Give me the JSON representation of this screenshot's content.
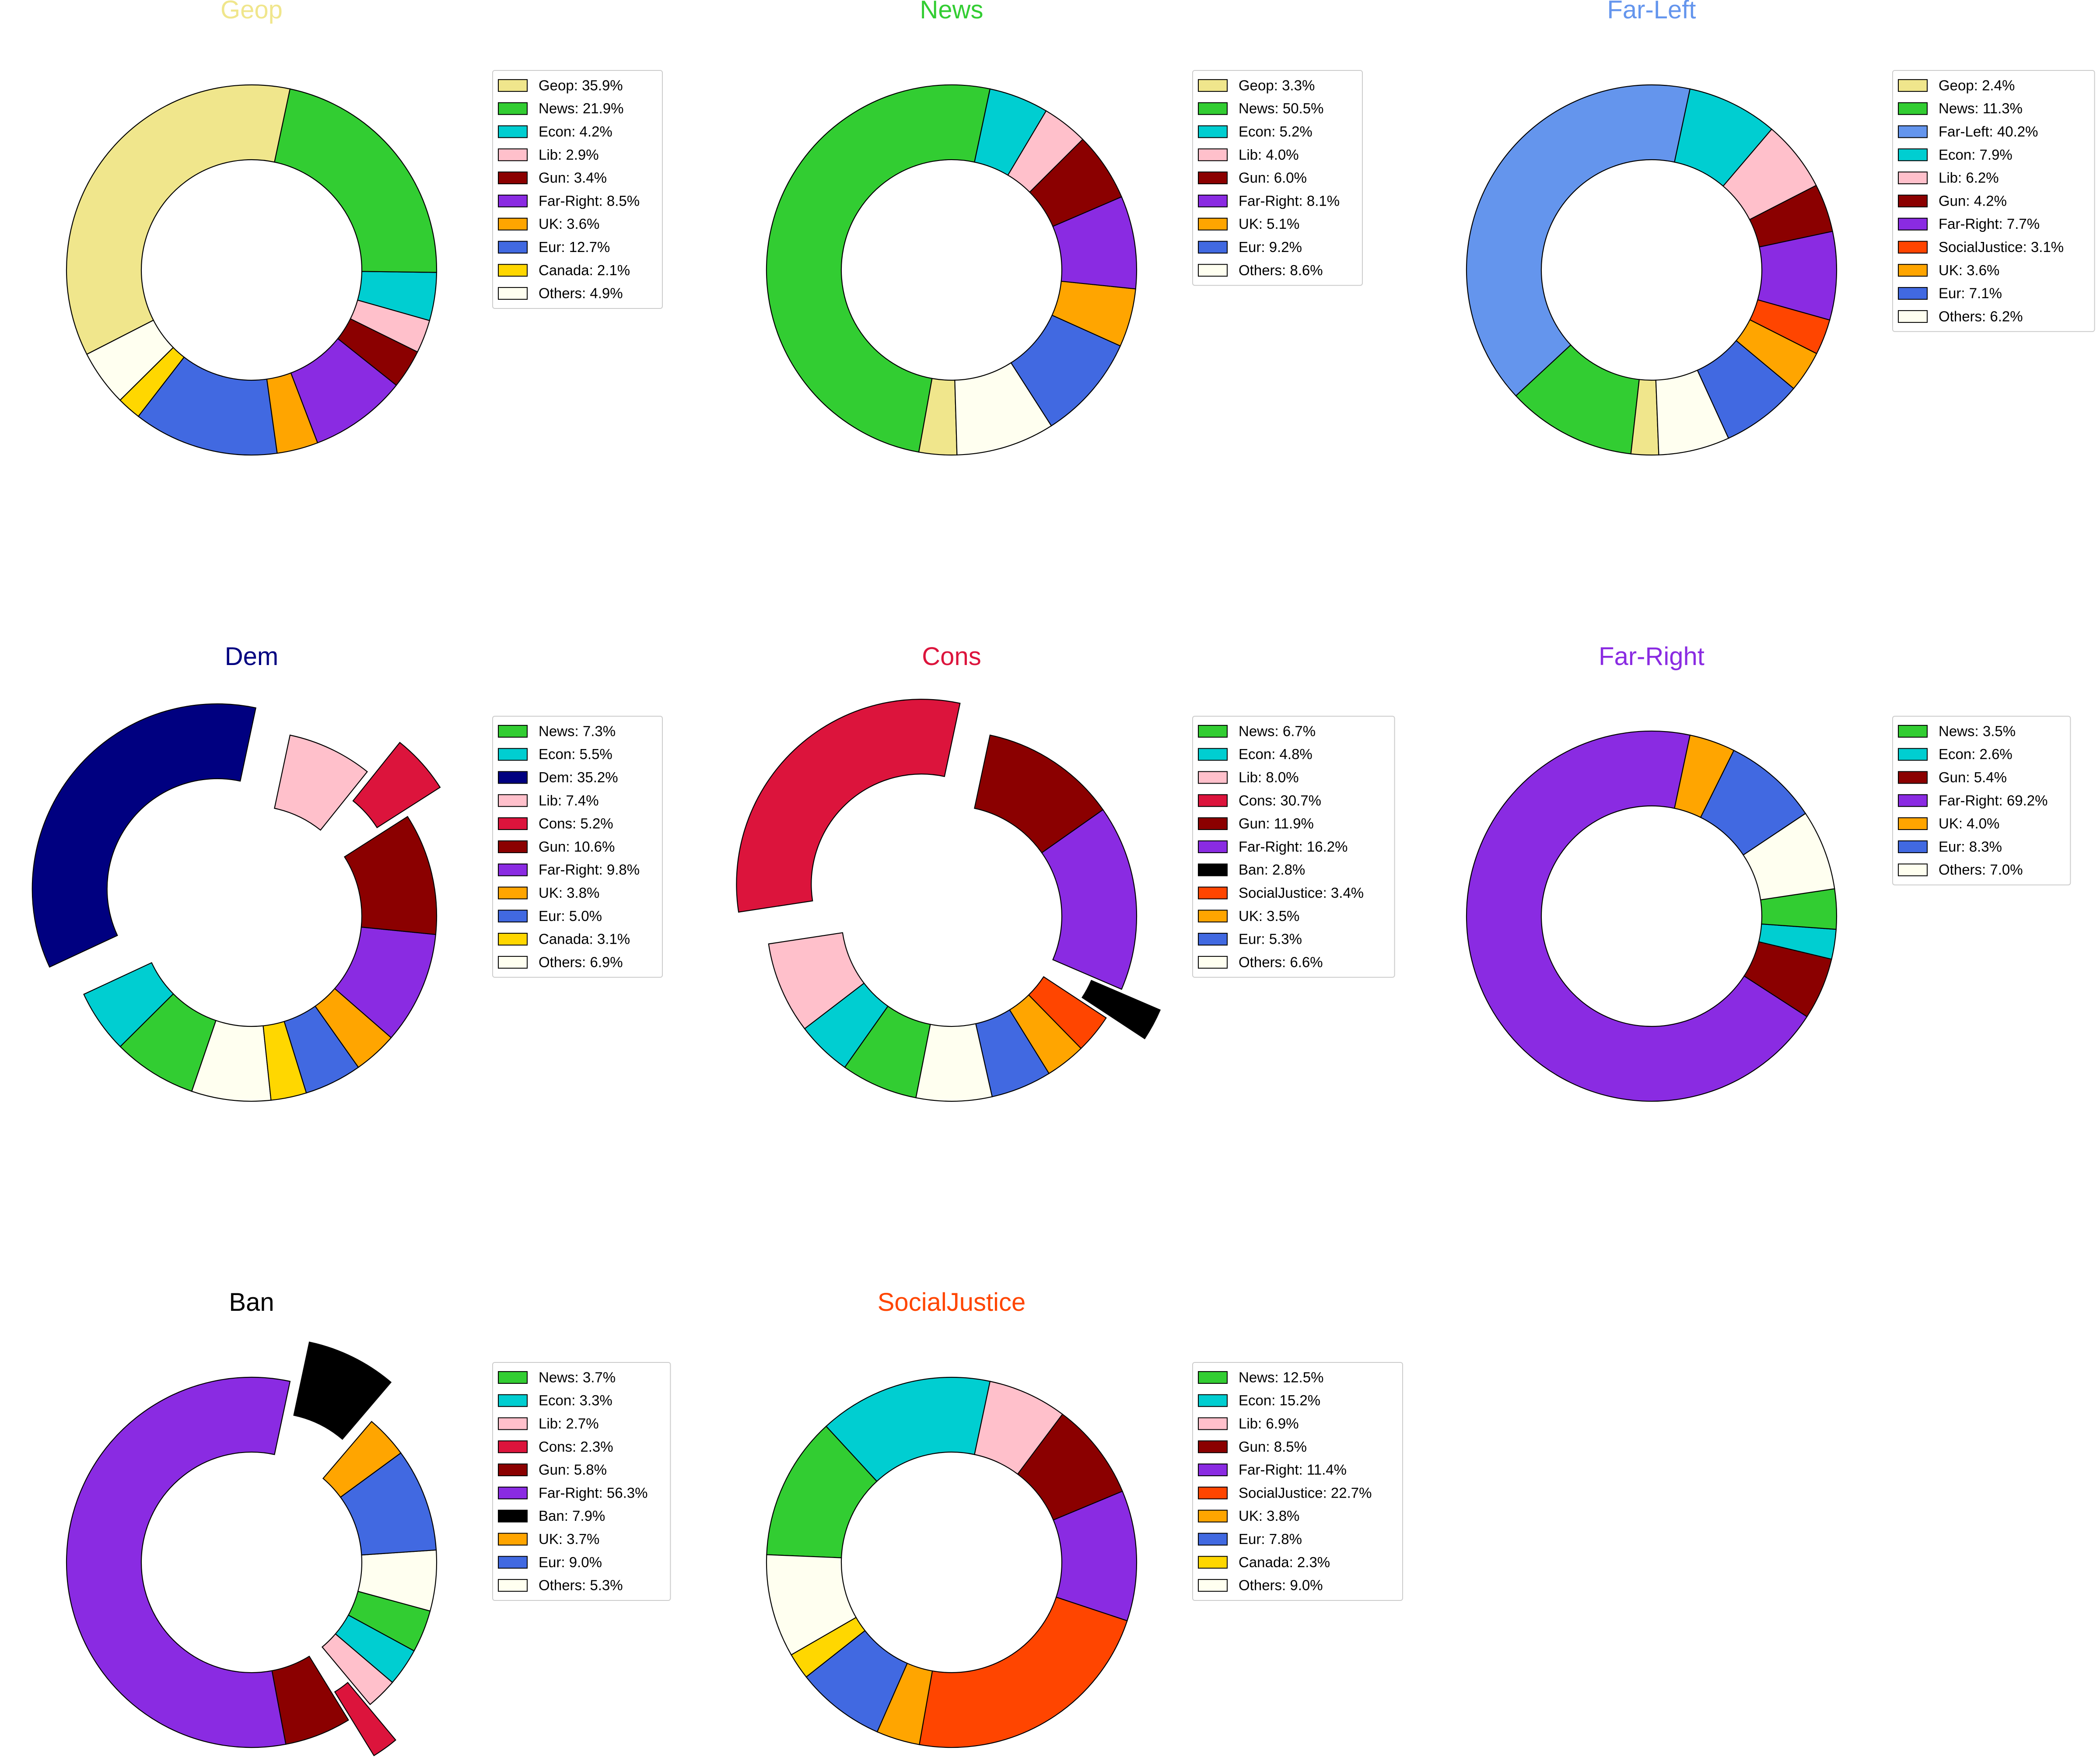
{
  "chart_data": [
    {
      "type": "donut",
      "title": "Geop",
      "title_color": "#F0E68C",
      "slices": [
        {
          "label": "Geop",
          "value": 35.9,
          "color": "#F0E68C",
          "exploded": false
        },
        {
          "label": "Others",
          "value": 4.9,
          "color": "#FFFFF0",
          "exploded": false
        },
        {
          "label": "Canada",
          "value": 2.1,
          "color": "#FFD700",
          "exploded": false
        },
        {
          "label": "Eur",
          "value": 12.7,
          "color": "#4169E1",
          "exploded": false
        },
        {
          "label": "UK",
          "value": 3.6,
          "color": "#FFA500",
          "exploded": false
        },
        {
          "label": "Far-Right",
          "value": 8.5,
          "color": "#8A2BE2",
          "exploded": false
        },
        {
          "label": "Gun",
          "value": 3.4,
          "color": "#8B0000",
          "exploded": false
        },
        {
          "label": "Lib",
          "value": 2.9,
          "color": "#FFC0CB",
          "exploded": false
        },
        {
          "label": "Econ",
          "value": 4.2,
          "color": "#00CED1",
          "exploded": false
        },
        {
          "label": "News",
          "value": 21.9,
          "color": "#32CD32",
          "exploded": false
        }
      ],
      "legend": [
        {
          "text": "Geop: 35.9%",
          "color": "#F0E68C"
        },
        {
          "text": "News: 21.9%",
          "color": "#32CD32"
        },
        {
          "text": "Econ: 4.2%",
          "color": "#00CED1"
        },
        {
          "text": "Lib: 2.9%",
          "color": "#FFC0CB"
        },
        {
          "text": "Gun: 3.4%",
          "color": "#8B0000"
        },
        {
          "text": "Far-Right: 8.5%",
          "color": "#8A2BE2"
        },
        {
          "text": "UK: 3.6%",
          "color": "#FFA500"
        },
        {
          "text": "Eur: 12.7%",
          "color": "#4169E1"
        },
        {
          "text": "Canada: 2.1%",
          "color": "#FFD700"
        },
        {
          "text": "Others: 4.9%",
          "color": "#FFFFF0"
        }
      ]
    },
    {
      "type": "donut",
      "title": "News",
      "title_color": "#32CD32",
      "slices": [
        {
          "label": "News",
          "value": 50.5,
          "color": "#32CD32",
          "exploded": false
        },
        {
          "label": "Geop",
          "value": 3.3,
          "color": "#F0E68C",
          "exploded": false
        },
        {
          "label": "Others",
          "value": 8.6,
          "color": "#FFFFF0",
          "exploded": false
        },
        {
          "label": "Eur",
          "value": 9.2,
          "color": "#4169E1",
          "exploded": false
        },
        {
          "label": "UK",
          "value": 5.1,
          "color": "#FFA500",
          "exploded": false
        },
        {
          "label": "Far-Right",
          "value": 8.1,
          "color": "#8A2BE2",
          "exploded": false
        },
        {
          "label": "Gun",
          "value": 6.0,
          "color": "#8B0000",
          "exploded": false
        },
        {
          "label": "Lib",
          "value": 4.0,
          "color": "#FFC0CB",
          "exploded": false
        },
        {
          "label": "Econ",
          "value": 5.2,
          "color": "#00CED1",
          "exploded": false
        }
      ],
      "legend": [
        {
          "text": "Geop: 3.3%",
          "color": "#F0E68C"
        },
        {
          "text": "News: 50.5%",
          "color": "#32CD32"
        },
        {
          "text": "Econ: 5.2%",
          "color": "#00CED1"
        },
        {
          "text": "Lib: 4.0%",
          "color": "#FFC0CB"
        },
        {
          "text": "Gun: 6.0%",
          "color": "#8B0000"
        },
        {
          "text": "Far-Right: 8.1%",
          "color": "#8A2BE2"
        },
        {
          "text": "UK: 5.1%",
          "color": "#FFA500"
        },
        {
          "text": "Eur: 9.2%",
          "color": "#4169E1"
        },
        {
          "text": "Others: 8.6%",
          "color": "#FFFFF0"
        }
      ]
    },
    {
      "type": "donut",
      "title": "Far-Left",
      "title_color": "#6495ED",
      "slices": [
        {
          "label": "Far-Left",
          "value": 40.2,
          "color": "#6495ED",
          "exploded": false
        },
        {
          "label": "News",
          "value": 11.3,
          "color": "#32CD32",
          "exploded": false
        },
        {
          "label": "Geop",
          "value": 2.4,
          "color": "#F0E68C",
          "exploded": false
        },
        {
          "label": "Others",
          "value": 6.2,
          "color": "#FFFFF0",
          "exploded": false
        },
        {
          "label": "Eur",
          "value": 7.1,
          "color": "#4169E1",
          "exploded": false
        },
        {
          "label": "UK",
          "value": 3.6,
          "color": "#FFA500",
          "exploded": false
        },
        {
          "label": "SocialJustice",
          "value": 3.1,
          "color": "#FF4500",
          "exploded": false
        },
        {
          "label": "Far-Right",
          "value": 7.7,
          "color": "#8A2BE2",
          "exploded": false
        },
        {
          "label": "Gun",
          "value": 4.2,
          "color": "#8B0000",
          "exploded": false
        },
        {
          "label": "Lib",
          "value": 6.2,
          "color": "#FFC0CB",
          "exploded": false
        },
        {
          "label": "Econ",
          "value": 7.9,
          "color": "#00CED1",
          "exploded": false
        }
      ],
      "legend": [
        {
          "text": "Geop: 2.4%",
          "color": "#F0E68C"
        },
        {
          "text": "News: 11.3%",
          "color": "#32CD32"
        },
        {
          "text": "Far-Left: 40.2%",
          "color": "#6495ED"
        },
        {
          "text": "Econ: 7.9%",
          "color": "#00CED1"
        },
        {
          "text": "Lib: 6.2%",
          "color": "#FFC0CB"
        },
        {
          "text": "Gun: 4.2%",
          "color": "#8B0000"
        },
        {
          "text": "Far-Right: 7.7%",
          "color": "#8A2BE2"
        },
        {
          "text": "SocialJustice: 3.1%",
          "color": "#FF4500"
        },
        {
          "text": "UK: 3.6%",
          "color": "#FFA500"
        },
        {
          "text": "Eur: 7.1%",
          "color": "#4169E1"
        },
        {
          "text": "Others: 6.2%",
          "color": "#FFFFF0"
        }
      ]
    },
    {
      "type": "donut",
      "title": "Dem",
      "title_color": "#000080",
      "slices": [
        {
          "label": "Dem",
          "value": 35.2,
          "color": "#000080",
          "exploded": true
        },
        {
          "label": "Econ",
          "value": 5.5,
          "color": "#00CED1",
          "exploded": false
        },
        {
          "label": "News",
          "value": 7.3,
          "color": "#32CD32",
          "exploded": false
        },
        {
          "label": "Others",
          "value": 6.9,
          "color": "#FFFFF0",
          "exploded": false
        },
        {
          "label": "Canada",
          "value": 3.1,
          "color": "#FFD700",
          "exploded": false
        },
        {
          "label": "Eur",
          "value": 5.0,
          "color": "#4169E1",
          "exploded": false
        },
        {
          "label": "UK",
          "value": 3.8,
          "color": "#FFA500",
          "exploded": false
        },
        {
          "label": "Far-Right",
          "value": 9.8,
          "color": "#8A2BE2",
          "exploded": false
        },
        {
          "label": "Gun",
          "value": 10.6,
          "color": "#8B0000",
          "exploded": false
        },
        {
          "label": "Cons",
          "value": 5.2,
          "color": "#DC143C",
          "exploded": true
        },
        {
          "label": "Lib",
          "value": 7.4,
          "color": "#FFC0CB",
          "exploded": false
        }
      ],
      "legend": [
        {
          "text": "News: 7.3%",
          "color": "#32CD32"
        },
        {
          "text": "Econ: 5.5%",
          "color": "#00CED1"
        },
        {
          "text": "Dem: 35.2%",
          "color": "#000080"
        },
        {
          "text": "Lib: 7.4%",
          "color": "#FFC0CB"
        },
        {
          "text": "Cons: 5.2%",
          "color": "#DC143C"
        },
        {
          "text": "Gun: 10.6%",
          "color": "#8B0000"
        },
        {
          "text": "Far-Right: 9.8%",
          "color": "#8A2BE2"
        },
        {
          "text": "UK: 3.8%",
          "color": "#FFA500"
        },
        {
          "text": "Eur: 5.0%",
          "color": "#4169E1"
        },
        {
          "text": "Canada: 3.1%",
          "color": "#FFD700"
        },
        {
          "text": "Others: 6.9%",
          "color": "#FFFFF0"
        }
      ]
    },
    {
      "type": "donut",
      "title": "Cons",
      "title_color": "#DC143C",
      "slices": [
        {
          "label": "Cons",
          "value": 30.7,
          "color": "#DC143C",
          "exploded": true
        },
        {
          "label": "Lib",
          "value": 8.0,
          "color": "#FFC0CB",
          "exploded": false
        },
        {
          "label": "Econ",
          "value": 4.8,
          "color": "#00CED1",
          "exploded": false
        },
        {
          "label": "News",
          "value": 6.7,
          "color": "#32CD32",
          "exploded": false
        },
        {
          "label": "Others",
          "value": 6.6,
          "color": "#FFFFF0",
          "exploded": false
        },
        {
          "label": "Eur",
          "value": 5.3,
          "color": "#4169E1",
          "exploded": false
        },
        {
          "label": "UK",
          "value": 3.5,
          "color": "#FFA500",
          "exploded": false
        },
        {
          "label": "SocialJustice",
          "value": 3.4,
          "color": "#FF4500",
          "exploded": false
        },
        {
          "label": "Ban",
          "value": 2.8,
          "color": "#000000",
          "exploded": true
        },
        {
          "label": "Far-Right",
          "value": 16.2,
          "color": "#8A2BE2",
          "exploded": false
        },
        {
          "label": "Gun",
          "value": 11.9,
          "color": "#8B0000",
          "exploded": false
        }
      ],
      "legend": [
        {
          "text": "News: 6.7%",
          "color": "#32CD32"
        },
        {
          "text": "Econ: 4.8%",
          "color": "#00CED1"
        },
        {
          "text": "Lib: 8.0%",
          "color": "#FFC0CB"
        },
        {
          "text": "Cons: 30.7%",
          "color": "#DC143C"
        },
        {
          "text": "Gun: 11.9%",
          "color": "#8B0000"
        },
        {
          "text": "Far-Right: 16.2%",
          "color": "#8A2BE2"
        },
        {
          "text": "Ban: 2.8%",
          "color": "#000000"
        },
        {
          "text": "SocialJustice: 3.4%",
          "color": "#FF4500"
        },
        {
          "text": "UK: 3.5%",
          "color": "#FFA500"
        },
        {
          "text": "Eur: 5.3%",
          "color": "#4169E1"
        },
        {
          "text": "Others: 6.6%",
          "color": "#FFFFF0"
        }
      ]
    },
    {
      "type": "donut",
      "title": "Far-Right",
      "title_color": "#8A2BE2",
      "slices": [
        {
          "label": "Far-Right",
          "value": 69.2,
          "color": "#8A2BE2",
          "exploded": false
        },
        {
          "label": "Gun",
          "value": 5.4,
          "color": "#8B0000",
          "exploded": false
        },
        {
          "label": "Econ",
          "value": 2.6,
          "color": "#00CED1",
          "exploded": false
        },
        {
          "label": "News",
          "value": 3.5,
          "color": "#32CD32",
          "exploded": false
        },
        {
          "label": "Others",
          "value": 7.0,
          "color": "#FFFFF0",
          "exploded": false
        },
        {
          "label": "Eur",
          "value": 8.3,
          "color": "#4169E1",
          "exploded": false
        },
        {
          "label": "UK",
          "value": 4.0,
          "color": "#FFA500",
          "exploded": false
        }
      ],
      "legend": [
        {
          "text": "News: 3.5%",
          "color": "#32CD32"
        },
        {
          "text": "Econ: 2.6%",
          "color": "#00CED1"
        },
        {
          "text": "Gun: 5.4%",
          "color": "#8B0000"
        },
        {
          "text": "Far-Right: 69.2%",
          "color": "#8A2BE2"
        },
        {
          "text": "UK: 4.0%",
          "color": "#FFA500"
        },
        {
          "text": "Eur: 8.3%",
          "color": "#4169E1"
        },
        {
          "text": "Others: 7.0%",
          "color": "#FFFFF0"
        }
      ]
    },
    {
      "type": "donut",
      "title": "Ban",
      "title_color": "#000000",
      "slices": [
        {
          "label": "Far-Right",
          "value": 56.3,
          "color": "#8A2BE2",
          "exploded": false
        },
        {
          "label": "Gun",
          "value": 5.8,
          "color": "#8B0000",
          "exploded": false
        },
        {
          "label": "Cons",
          "value": 2.3,
          "color": "#DC143C",
          "exploded": true
        },
        {
          "label": "Lib",
          "value": 2.7,
          "color": "#FFC0CB",
          "exploded": false
        },
        {
          "label": "Econ",
          "value": 3.3,
          "color": "#00CED1",
          "exploded": false
        },
        {
          "label": "News",
          "value": 3.7,
          "color": "#32CD32",
          "exploded": false
        },
        {
          "label": "Others",
          "value": 5.3,
          "color": "#FFFFF0",
          "exploded": false
        },
        {
          "label": "Eur",
          "value": 9.0,
          "color": "#4169E1",
          "exploded": false
        },
        {
          "label": "UK",
          "value": 3.7,
          "color": "#FFA500",
          "exploded": false
        },
        {
          "label": "Ban",
          "value": 7.9,
          "color": "#000000",
          "exploded": true
        }
      ],
      "legend": [
        {
          "text": "News: 3.7%",
          "color": "#32CD32"
        },
        {
          "text": "Econ: 3.3%",
          "color": "#00CED1"
        },
        {
          "text": "Lib: 2.7%",
          "color": "#FFC0CB"
        },
        {
          "text": "Cons: 2.3%",
          "color": "#DC143C"
        },
        {
          "text": "Gun: 5.8%",
          "color": "#8B0000"
        },
        {
          "text": "Far-Right: 56.3%",
          "color": "#8A2BE2"
        },
        {
          "text": "Ban: 7.9%",
          "color": "#000000"
        },
        {
          "text": "UK: 3.7%",
          "color": "#FFA500"
        },
        {
          "text": "Eur: 9.0%",
          "color": "#4169E1"
        },
        {
          "text": "Others: 5.3%",
          "color": "#FFFFF0"
        }
      ]
    },
    {
      "type": "donut",
      "title": "SocialJustice",
      "title_color": "#FF4500",
      "slices": [
        {
          "label": "Econ",
          "value": 15.2,
          "color": "#00CED1",
          "exploded": false
        },
        {
          "label": "News",
          "value": 12.5,
          "color": "#32CD32",
          "exploded": false
        },
        {
          "label": "Others",
          "value": 9.0,
          "color": "#FFFFF0",
          "exploded": false
        },
        {
          "label": "Canada",
          "value": 2.3,
          "color": "#FFD700",
          "exploded": false
        },
        {
          "label": "Eur",
          "value": 7.8,
          "color": "#4169E1",
          "exploded": false
        },
        {
          "label": "UK",
          "value": 3.8,
          "color": "#FFA500",
          "exploded": false
        },
        {
          "label": "SocialJustice",
          "value": 22.7,
          "color": "#FF4500",
          "exploded": false
        },
        {
          "label": "Far-Right",
          "value": 11.4,
          "color": "#8A2BE2",
          "exploded": false
        },
        {
          "label": "Gun",
          "value": 8.5,
          "color": "#8B0000",
          "exploded": false
        },
        {
          "label": "Lib",
          "value": 6.9,
          "color": "#FFC0CB",
          "exploded": false
        }
      ],
      "legend": [
        {
          "text": "News: 12.5%",
          "color": "#32CD32"
        },
        {
          "text": "Econ: 15.2%",
          "color": "#00CED1"
        },
        {
          "text": "Lib: 6.9%",
          "color": "#FFC0CB"
        },
        {
          "text": "Gun: 8.5%",
          "color": "#8B0000"
        },
        {
          "text": "Far-Right: 11.4%",
          "color": "#8A2BE2"
        },
        {
          "text": "SocialJustice: 22.7%",
          "color": "#FF4500"
        },
        {
          "text": "UK: 3.8%",
          "color": "#FFA500"
        },
        {
          "text": "Eur: 7.8%",
          "color": "#4169E1"
        },
        {
          "text": "Canada: 2.3%",
          "color": "#FFD700"
        },
        {
          "text": "Others: 9.0%",
          "color": "#FFFFF0"
        }
      ]
    }
  ]
}
